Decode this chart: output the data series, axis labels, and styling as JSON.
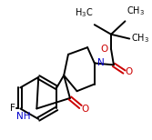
{
  "bg_color": "#ffffff",
  "bond_color": "#000000",
  "N_color": "#0000cc",
  "O_color": "#cc0000",
  "F_color": "#000000",
  "line_width": 1.4,
  "figsize": [
    1.67,
    1.54
  ],
  "dpi": 100,
  "xlim": [
    0,
    167
  ],
  "ylim": [
    0,
    154
  ]
}
